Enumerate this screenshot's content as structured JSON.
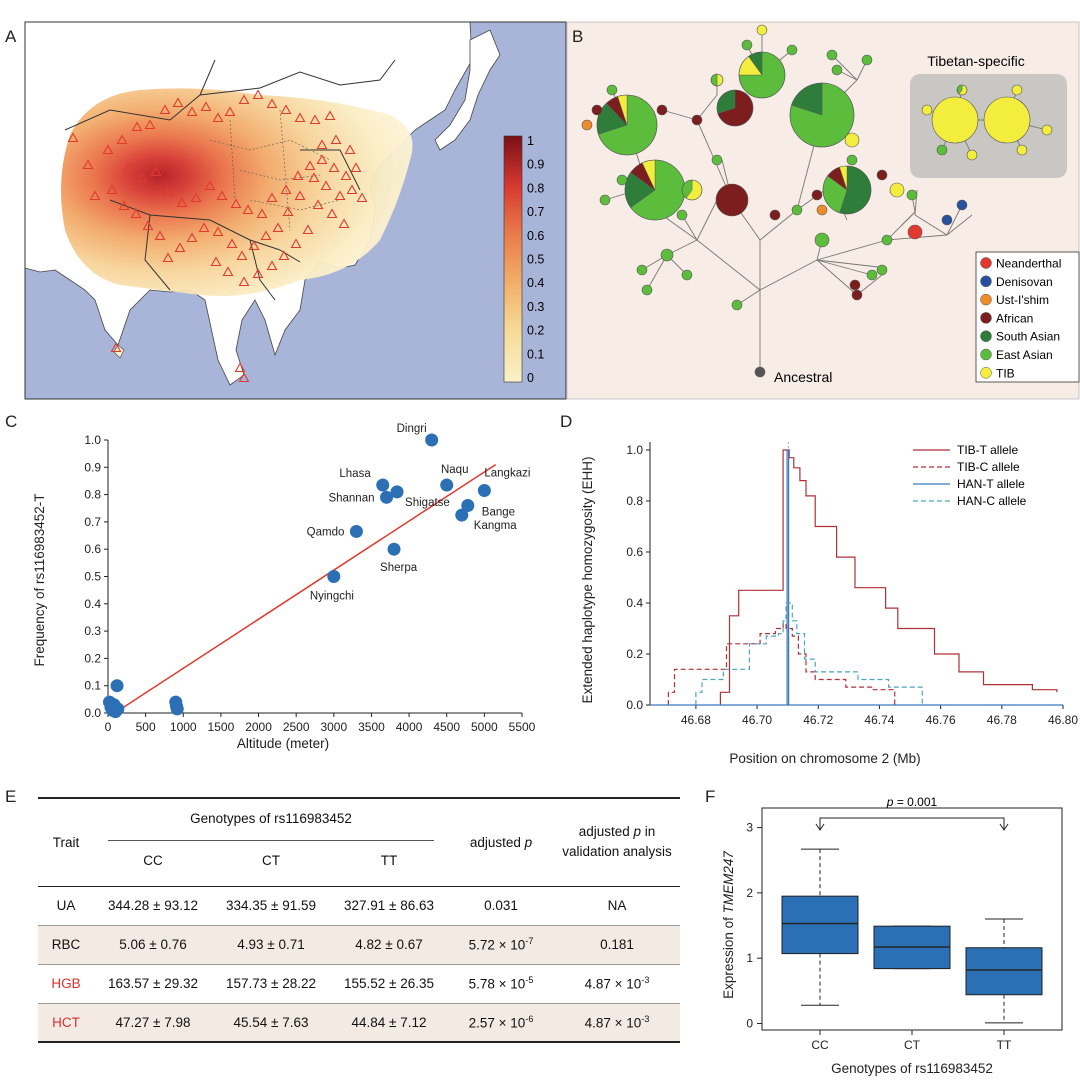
{
  "panels": {
    "A": {
      "letter": "A",
      "colorbar": {
        "ticks": [
          "1",
          "0.9",
          "0.8",
          "0.7",
          "0.6",
          "0.5",
          "0.4",
          "0.3",
          "0.2",
          "0.1",
          "0"
        ]
      }
    },
    "B": {
      "letter": "B",
      "inset_title": "Tibetan-specific",
      "root_label": "Ancestral",
      "legend": [
        {
          "name": "Neanderthal",
          "color": "#e03a2f"
        },
        {
          "name": "Denisovan",
          "color": "#27519e"
        },
        {
          "name": "Ust-I'shim",
          "color": "#ef8c2a"
        },
        {
          "name": "African",
          "color": "#7c1e1e"
        },
        {
          "name": "South Asian",
          "color": "#2f7d3a"
        },
        {
          "name": "East Asian",
          "color": "#5cbd3c"
        },
        {
          "name": "TIB",
          "color": "#f3ee3e"
        }
      ]
    },
    "C": {
      "letter": "C",
      "chart_data": {
        "type": "scatter",
        "xlabel": "Altitude (meter)",
        "ylabel": "Frequency of  rs116983452-T",
        "xlim": [
          0,
          5500
        ],
        "ylim": [
          0,
          1.0
        ],
        "xticks": [
          "0",
          "500",
          "1000",
          "1500",
          "2000",
          "2500",
          "3000",
          "3500",
          "4000",
          "4500",
          "5000",
          "5500"
        ],
        "yticks": [
          "0.0",
          "0.1",
          "0.2",
          "0.3",
          "0.4",
          "0.5",
          "0.6",
          "0.7",
          "0.8",
          "0.9",
          "1.0"
        ],
        "points": [
          {
            "label": "Dingri",
            "x": 4300,
            "y": 1.0
          },
          {
            "label": "Naqu",
            "x": 4500,
            "y": 0.835
          },
          {
            "label": "Langkazi",
            "x": 5000,
            "y": 0.815
          },
          {
            "label": "Lhasa",
            "x": 3650,
            "y": 0.835
          },
          {
            "label": "Shannan",
            "x": 3700,
            "y": 0.79
          },
          {
            "label": "Shigatse",
            "x": 3840,
            "y": 0.81
          },
          {
            "label": "Bange",
            "x": 4780,
            "y": 0.76
          },
          {
            "label": "Kangma",
            "x": 4700,
            "y": 0.725
          },
          {
            "label": "Qamdo",
            "x": 3300,
            "y": 0.665
          },
          {
            "label": "Sherpa",
            "x": 3800,
            "y": 0.6
          },
          {
            "label": "Nyingchi",
            "x": 3000,
            "y": 0.5
          },
          {
            "label": "",
            "x": 20,
            "y": 0.04
          },
          {
            "label": "",
            "x": 40,
            "y": 0.02
          },
          {
            "label": "",
            "x": 60,
            "y": 0.01
          },
          {
            "label": "",
            "x": 80,
            "y": 0.03
          },
          {
            "label": "",
            "x": 100,
            "y": 0.005
          },
          {
            "label": "",
            "x": 120,
            "y": 0.1
          },
          {
            "label": "",
            "x": 130,
            "y": 0.015
          },
          {
            "label": "",
            "x": 900,
            "y": 0.04
          },
          {
            "label": "",
            "x": 910,
            "y": 0.025
          },
          {
            "label": "",
            "x": 920,
            "y": 0.015
          }
        ],
        "fit_line": {
          "x": [
            0,
            5500
          ],
          "y": [
            -0.02,
            0.94
          ],
          "color": "#e03a2f"
        },
        "marker_color": "#2b6fb5"
      }
    },
    "D": {
      "letter": "D",
      "chart_data": {
        "type": "line",
        "xlabel": "Position on chromosome 2 (Mb)",
        "ylabel": "Extended haplotype homozygosity (EHH)",
        "xlim": [
          46.665,
          46.8
        ],
        "ylim": [
          0,
          1.0
        ],
        "xticks": [
          "46.68",
          "46.70",
          "46.72",
          "46.74",
          "46.76",
          "46.78",
          "46.80"
        ],
        "yticks": [
          "0.0",
          "0.2",
          "0.4",
          "0.6",
          "0.8",
          "1.0"
        ],
        "series": [
          {
            "name": "TIB-T allele",
            "color": "#b03037",
            "dash": "solid",
            "x": [
              46.688,
              46.688,
              46.691,
              46.691,
              46.694,
              46.694,
              46.7085,
              46.7085,
              46.7105,
              46.7105,
              46.712,
              46.712,
              46.714,
              46.714,
              46.716,
              46.716,
              46.719,
              46.719,
              46.726,
              46.726,
              46.732,
              46.732,
              46.742,
              46.742,
              46.746,
              46.746,
              46.758,
              46.758,
              46.766,
              46.766,
              46.774,
              46.774,
              46.79,
              46.79,
              46.798,
              46.798
            ],
            "y": [
              0,
              0.05,
              0.05,
              0.35,
              0.35,
              0.45,
              0.45,
              1.0,
              1.0,
              0.97,
              0.97,
              0.93,
              0.93,
              0.88,
              0.88,
              0.82,
              0.82,
              0.7,
              0.7,
              0.58,
              0.58,
              0.46,
              0.46,
              0.38,
              0.38,
              0.3,
              0.3,
              0.2,
              0.2,
              0.13,
              0.13,
              0.08,
              0.08,
              0.06,
              0.06,
              0.05
            ]
          },
          {
            "name": "TIB-C allele",
            "color": "#b03037",
            "dash": "dashed",
            "x": [
              46.671,
              46.671,
              46.673,
              46.673,
              46.683,
              46.683,
              46.69,
              46.69,
              46.701,
              46.701,
              46.706,
              46.706,
              46.7085,
              46.7085,
              46.7095,
              46.7095,
              46.7115,
              46.7115,
              46.7135,
              46.7135,
              46.716,
              46.716,
              46.719,
              46.719,
              46.729,
              46.729,
              46.738,
              46.738,
              46.745,
              46.745
            ],
            "y": [
              0,
              0.05,
              0.05,
              0.14,
              0.14,
              0.14,
              0.14,
              0.24,
              0.24,
              0.28,
              0.28,
              0.3,
              0.3,
              0.32,
              0.32,
              0.3,
              0.3,
              0.27,
              0.27,
              0.2,
              0.2,
              0.13,
              0.13,
              0.1,
              0.1,
              0.07,
              0.07,
              0.06,
              0.06,
              0.0
            ]
          },
          {
            "name": "HAN-T allele",
            "color": "#3a79bf",
            "dash": "solid",
            "x": [
              46.665,
              46.7098,
              46.7098,
              46.7103,
              46.7103,
              46.8
            ],
            "y": [
              0,
              0,
              1.0,
              1.0,
              0,
              0
            ]
          },
          {
            "name": "HAN-C allele",
            "color": "#4fa3c0",
            "dash": "dashed",
            "x": [
              46.68,
              46.68,
              46.682,
              46.682,
              46.689,
              46.689,
              46.6975,
              46.6975,
              46.703,
              46.703,
              46.707,
              46.707,
              46.7085,
              46.7085,
              46.7095,
              46.7095,
              46.7115,
              46.7115,
              46.713,
              46.713,
              46.7155,
              46.7155,
              46.719,
              46.719,
              46.733,
              46.733,
              46.743,
              46.743,
              46.754,
              46.754
            ],
            "y": [
              0,
              0.05,
              0.05,
              0.1,
              0.1,
              0.14,
              0.14,
              0.24,
              0.24,
              0.27,
              0.27,
              0.28,
              0.28,
              0.33,
              0.33,
              0.4,
              0.4,
              0.33,
              0.33,
              0.28,
              0.28,
              0.18,
              0.18,
              0.13,
              0.13,
              0.1,
              0.1,
              0.07,
              0.07,
              0.0
            ]
          }
        ],
        "marker_x": 46.7102
      }
    },
    "E": {
      "letter": "E",
      "header_trait": "Trait",
      "header_genotypes": "Genotypes of rs116983452",
      "header_p": "adjusted p",
      "header_p_pre": "adjusted ",
      "header_p_italic": "p",
      "header_pval_line1_pre": "adjusted ",
      "header_pval_line1_italic": "p",
      "header_pval_line1_post": " in",
      "header_pval_line2": "validation analysis",
      "sub_cc": "CC",
      "sub_ct": "CT",
      "sub_tt": "TT",
      "rows": [
        {
          "trait": "UA",
          "cc": "344.28 ± 93.12",
          "ct": "334.35 ± 91.59",
          "tt": "327.91 ± 86.63",
          "p_base": "0.031",
          "p_exp": "",
          "v_base": "NA",
          "v_exp": "",
          "highlight": false,
          "bg": "#ffffff"
        },
        {
          "trait": "RBC",
          "cc": "5.06 ± 0.76",
          "ct": "4.93 ± 0.71",
          "tt": "4.82 ± 0.67",
          "p_base": "5.72 × 10",
          "p_exp": "-7",
          "v_base": "0.181",
          "v_exp": "",
          "highlight": false,
          "bg": "#f4eae4"
        },
        {
          "trait": "HGB",
          "cc": "163.57 ± 29.32",
          "ct": "157.73 ± 28.22",
          "tt": "155.52 ± 26.35",
          "p_base": "5.78 × 10",
          "p_exp": "-5",
          "v_base": "4.87 × 10",
          "v_exp": "-3",
          "highlight": true,
          "bg": "#ffffff"
        },
        {
          "trait": "HCT",
          "cc": "47.27 ± 7.98",
          "ct": "45.54 ± 7.63",
          "tt": "44.84 ± 7.12",
          "p_base": "2.57 × 10",
          "p_exp": "-6",
          "v_base": "4.87 × 10",
          "v_exp": "-3",
          "highlight": true,
          "bg": "#f4eae4"
        }
      ]
    },
    "F": {
      "letter": "F",
      "chart_data": {
        "type": "box",
        "xlabel": "Genotypes of rs116983452",
        "ylabel_pre": "Expression of ",
        "ylabel_italic": "TMEM247",
        "ylim": [
          -0.1,
          3.3
        ],
        "yticks": [
          "0",
          "1",
          "2",
          "3"
        ],
        "categories": [
          "CC",
          "CT",
          "TT"
        ],
        "boxes": [
          {
            "name": "CC",
            "min": 0.28,
            "q1": 1.07,
            "median": 1.53,
            "q3": 1.95,
            "max": 2.67
          },
          {
            "name": "CT",
            "min": 0.84,
            "q1": 0.84,
            "median": 1.17,
            "q3": 1.49,
            "max": 1.49
          },
          {
            "name": "TT",
            "min": 0.01,
            "q1": 0.44,
            "median": 0.82,
            "q3": 1.16,
            "max": 1.6
          }
        ],
        "annotation_p_italic": "p",
        "annotation_value": " = 0.001",
        "box_color": "#2b6fb5"
      }
    }
  }
}
